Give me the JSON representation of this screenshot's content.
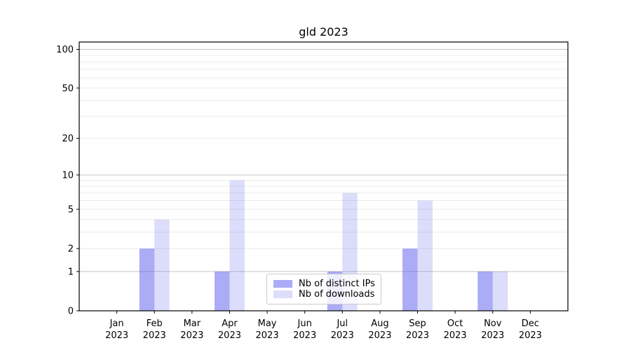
{
  "chart_data": {
    "type": "bar",
    "title": "gld 2023",
    "categories": [
      "Jan 2023",
      "Feb 2023",
      "Mar 2023",
      "Apr 2023",
      "May 2023",
      "Jun 2023",
      "Jul 2023",
      "Aug 2023",
      "Sep 2023",
      "Oct 2023",
      "Nov 2023",
      "Dec 2023"
    ],
    "series": [
      {
        "name": "Nb of distinct IPs",
        "color": "#6666ee",
        "opacity": 0.55,
        "values": [
          0,
          2,
          0,
          1,
          0,
          0,
          1,
          0,
          2,
          0,
          1,
          0
        ]
      },
      {
        "name": "Nb of downloads",
        "color": "#6666ee",
        "opacity": 0.23,
        "values": [
          0,
          4,
          0,
          9,
          0,
          0,
          7,
          0,
          6,
          0,
          1,
          0
        ]
      }
    ],
    "xlabel": "",
    "ylabel": "",
    "yscale": "log1p",
    "ylim": [
      0,
      114
    ],
    "yticks": [
      0,
      1,
      2,
      5,
      10,
      20,
      50,
      100
    ],
    "major_gridlines": [
      1,
      10,
      100
    ],
    "minor_gridlines": [
      2,
      3,
      4,
      5,
      6,
      7,
      8,
      9,
      20,
      30,
      40,
      50,
      60,
      70,
      80,
      90
    ],
    "grid": true,
    "legend_location": "lower center"
  },
  "colors": {
    "bar_base": "#6666ee",
    "major_grid": "#c4c4c4",
    "minor_grid": "#ebebeb",
    "axis": "#000000"
  }
}
